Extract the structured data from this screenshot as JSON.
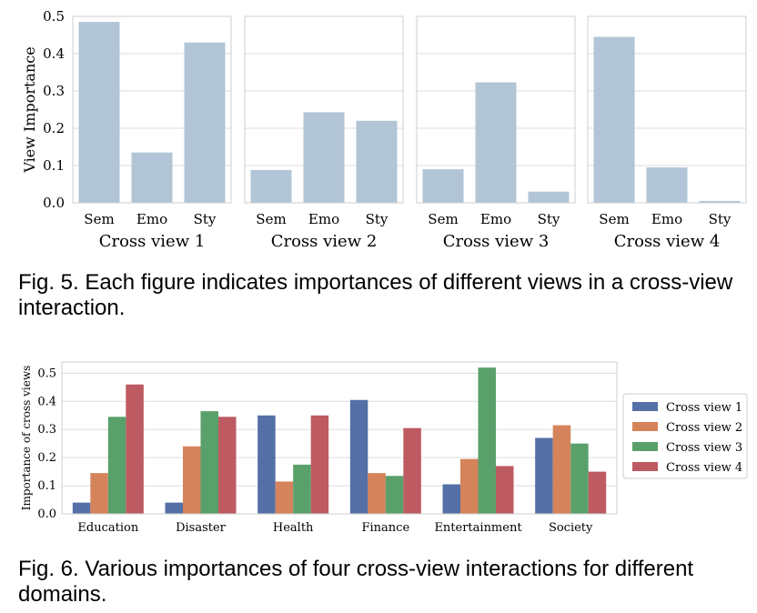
{
  "caption_fig5": "Fig. 5. Each figure indicates importances of different views in a cross-view interaction.",
  "caption_fig6": "Fig. 6. Various importances of four cross-view interactions for different domains.",
  "chart_data": [
    {
      "type": "bar",
      "ylabel": "View Importance",
      "ylim": [
        0,
        0.5
      ],
      "yticks": [
        "0.0",
        "0.1",
        "0.2",
        "0.3",
        "0.4",
        "0.5"
      ],
      "color": "#b2c5d6",
      "panels": [
        {
          "xlabel": "Cross view 1",
          "categories": [
            "Sem",
            "Emo",
            "Sty"
          ],
          "values": [
            0.485,
            0.135,
            0.43
          ]
        },
        {
          "xlabel": "Cross view 2",
          "categories": [
            "Sem",
            "Emo",
            "Sty"
          ],
          "values": [
            0.088,
            0.243,
            0.22
          ]
        },
        {
          "xlabel": "Cross view 3",
          "categories": [
            "Sem",
            "Emo",
            "Sty"
          ],
          "values": [
            0.09,
            0.323,
            0.03
          ]
        },
        {
          "xlabel": "Cross view 4",
          "categories": [
            "Sem",
            "Emo",
            "Sty"
          ],
          "values": [
            0.445,
            0.095,
            0.005
          ]
        }
      ]
    },
    {
      "type": "bar",
      "ylabel": "Importance of cross views",
      "ylim": [
        0,
        0.54
      ],
      "yticks": [
        "0.0",
        "0.1",
        "0.2",
        "0.3",
        "0.4",
        "0.5"
      ],
      "categories": [
        "Education",
        "Disaster",
        "Health",
        "Finance",
        "Entertainment",
        "Society"
      ],
      "legend": "right",
      "series": [
        {
          "name": "Cross view 1",
          "color": "#5470a6",
          "values": [
            0.04,
            0.04,
            0.35,
            0.405,
            0.105,
            0.27
          ]
        },
        {
          "name": "Cross view 2",
          "color": "#d5835a",
          "values": [
            0.145,
            0.24,
            0.115,
            0.145,
            0.195,
            0.315
          ]
        },
        {
          "name": "Cross view 3",
          "color": "#5aa06a",
          "values": [
            0.345,
            0.365,
            0.175,
            0.135,
            0.52,
            0.25
          ]
        },
        {
          "name": "Cross view 4",
          "color": "#bd5a62",
          "values": [
            0.46,
            0.345,
            0.35,
            0.305,
            0.17,
            0.15
          ]
        }
      ]
    }
  ]
}
